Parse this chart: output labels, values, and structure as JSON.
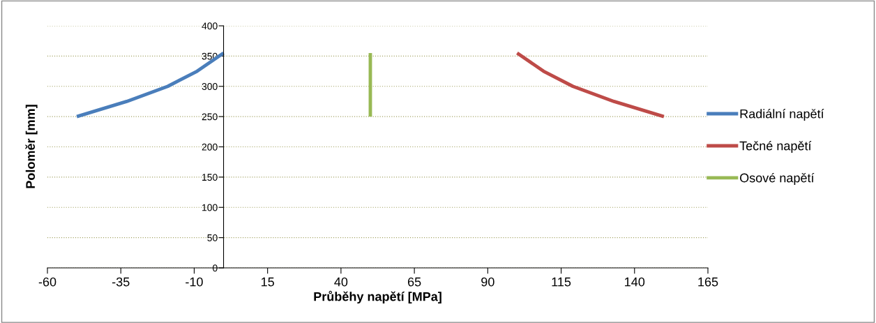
{
  "chart_data": {
    "type": "line",
    "xlabel": "Průběhy napětí [MPa]",
    "ylabel": "Poloměr [mm]",
    "xlim": [
      -60,
      165
    ],
    "xticks": [
      -60,
      -35,
      -10,
      15,
      40,
      65,
      90,
      115,
      140,
      165
    ],
    "ylim": [
      0,
      400
    ],
    "yticks": [
      0,
      50,
      100,
      150,
      200,
      250,
      300,
      350,
      400
    ],
    "grid": "y",
    "legend": "right",
    "line_style": "solid",
    "marker": "none",
    "series": [
      {
        "name": "Radiální napětí",
        "color": "#4a7ebb",
        "x": [
          -50,
          -33,
          -19,
          -9,
          0
        ],
        "values": [
          250,
          275,
          300,
          325,
          355
        ]
      },
      {
        "name": "Tečné napětí",
        "color": "#be4b48",
        "x": [
          150,
          133,
          119,
          109,
          100
        ],
        "values": [
          250,
          275,
          300,
          325,
          355
        ]
      },
      {
        "name": "Osové napětí",
        "color": "#98b954",
        "x": [
          50,
          50
        ],
        "values": [
          250,
          355
        ]
      }
    ]
  }
}
